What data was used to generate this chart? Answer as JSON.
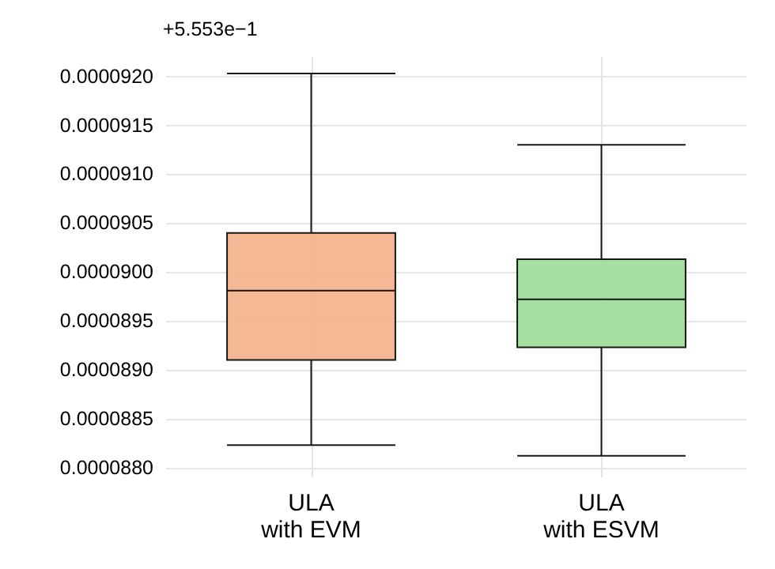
{
  "chart_data": {
    "type": "box",
    "categories": [
      "ULA\nwith EVM",
      "ULA\nwith ESVM"
    ],
    "boxes": [
      {
        "low": 8.823e-05,
        "q1": 8.91e-05,
        "median": 8.981e-05,
        "q3": 9.04e-05,
        "high": 9.203e-05
      },
      {
        "low": 8.812e-05,
        "q1": 8.923e-05,
        "median": 8.972e-05,
        "q3": 9.013e-05,
        "high": 9.13e-05
      }
    ],
    "colors": [
      "#f4b08a",
      "#9ddb97"
    ],
    "ylim": [
      8.79e-05,
      9.22e-05
    ],
    "yticks": [
      {
        "value": 8.8e-05,
        "label": "0.0000880"
      },
      {
        "value": 8.85e-05,
        "label": "0.0000885"
      },
      {
        "value": 8.9e-05,
        "label": "0.0000890"
      },
      {
        "value": 8.95e-05,
        "label": "0.0000895"
      },
      {
        "value": 9e-05,
        "label": "0.0000900"
      },
      {
        "value": 9.05e-05,
        "label": "0.0000905"
      },
      {
        "value": 9.1e-05,
        "label": "0.0000910"
      },
      {
        "value": 9.15e-05,
        "label": "0.0000915"
      },
      {
        "value": 9.2e-05,
        "label": "0.0000920"
      }
    ],
    "annotations": [
      "+5.553e−1"
    ],
    "grid": true
  }
}
